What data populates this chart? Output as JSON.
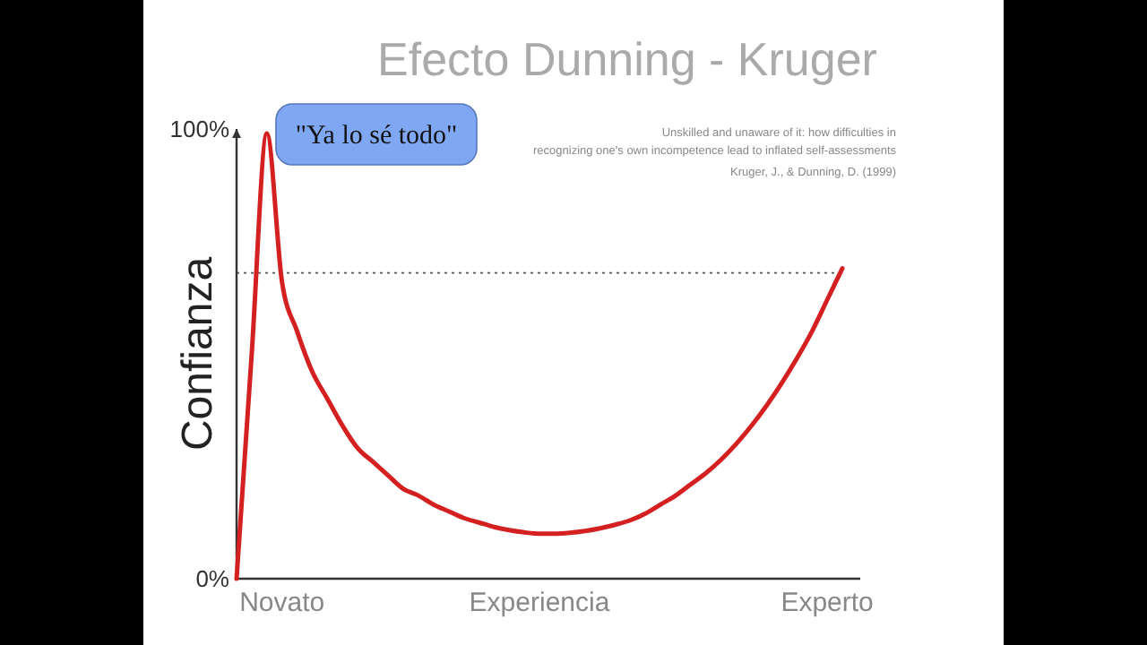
{
  "chart_data": {
    "type": "line",
    "title": "Efecto Dunning - Kruger",
    "subtitle": "Unskilled and unaware of it: how difficulties in recognizing one's own incompetence lead to inflated self-assessments",
    "ylabel": "Confianza",
    "annotations": [
      "\"Ya lo sé todo\"",
      "Kruger, J., & Dunning, D. (1999)"
    ],
    "categories": [
      null,
      null,
      null,
      "Novato",
      null,
      null,
      null,
      null,
      null,
      null,
      null,
      null,
      null,
      null,
      null,
      null,
      null,
      null,
      null,
      null,
      "Experiencia",
      null,
      null,
      null,
      null,
      null,
      null,
      null,
      null,
      null,
      null,
      null,
      null,
      null,
      null,
      null,
      null,
      null,
      null,
      "Experto",
      null
    ],
    "ylim": [
      0,
      100
    ],
    "yticks": [
      {
        "value": 0,
        "label": "0%"
      },
      {
        "value": 100,
        "label": "100%"
      }
    ],
    "ref_lines": [
      {
        "axis": "y",
        "value": 68,
        "color": "#555555",
        "line_style": "dotted"
      }
    ],
    "marker": "none",
    "line_style": "solid",
    "series": [
      {
        "color": "#d42020",
        "values": [
          0,
          50,
          99,
          66,
          55,
          46,
          40,
          34,
          29,
          26,
          23,
          20,
          18.5,
          16.5,
          15,
          13.5,
          12.5,
          11.5,
          10.8,
          10.3,
          10,
          10,
          10.2,
          10.6,
          11.2,
          12,
          13,
          14.5,
          16.5,
          18.5,
          21,
          23.5,
          26.5,
          30,
          34,
          38.5,
          43.5,
          49,
          55,
          62,
          69
        ]
      }
    ]
  }
}
